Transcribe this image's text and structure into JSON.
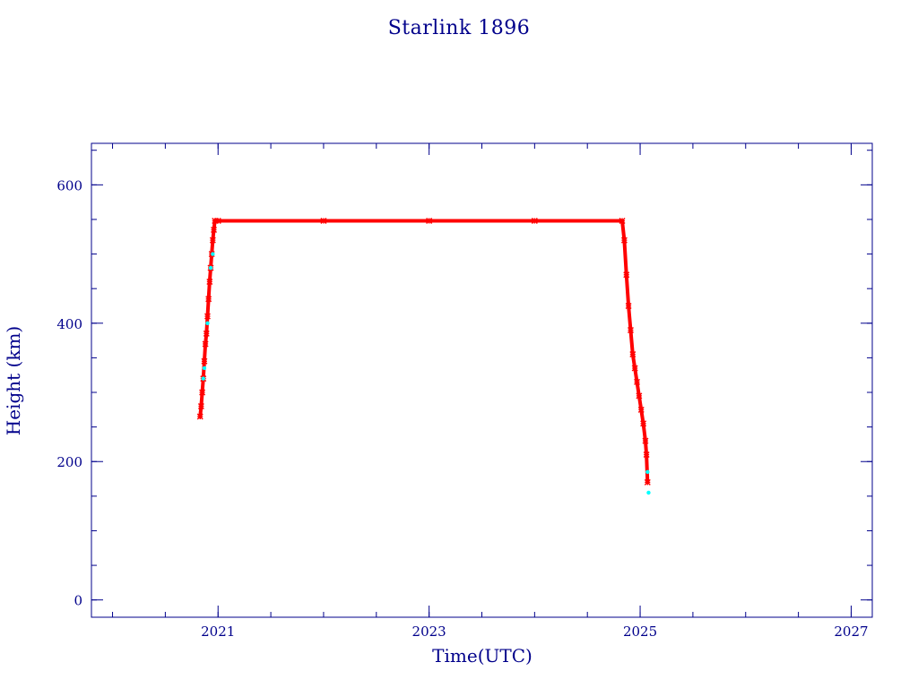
{
  "chart_data": {
    "type": "scatter",
    "title": "Starlink 1896",
    "xlabel": "Time(UTC)",
    "ylabel": "Height (km)",
    "xlim": [
      2019.8,
      2027.2
    ],
    "ylim": [
      -25,
      660
    ],
    "x_ticks": [
      2021,
      2023,
      2025,
      2027
    ],
    "y_ticks": [
      0,
      200,
      400,
      600
    ],
    "x_minor_step": 0.5,
    "y_minor_step": 50,
    "grid": false,
    "colors": {
      "axis": "#00008B",
      "primary_series": "#FF0000",
      "secondary_series": "#00FFFF"
    },
    "series": [
      {
        "color": "#FF0000",
        "marker": "asterisk",
        "x": [
          2020.83,
          2020.84,
          2020.85,
          2020.86,
          2020.87,
          2020.88,
          2020.89,
          2020.9,
          2020.91,
          2020.92,
          2020.93,
          2020.94,
          2020.95,
          2020.96,
          2020.97,
          2021.0,
          2022.0,
          2023.0,
          2024.0,
          2024.83,
          2024.85,
          2024.87,
          2024.89,
          2024.91,
          2024.93,
          2024.95,
          2024.97,
          2024.99,
          2025.01,
          2025.03,
          2025.05,
          2025.06,
          2025.07
        ],
        "y": [
          265,
          280,
          300,
          320,
          345,
          370,
          385,
          410,
          435,
          460,
          480,
          500,
          520,
          535,
          548,
          548,
          548,
          548,
          548,
          548,
          520,
          470,
          425,
          390,
          355,
          335,
          315,
          295,
          275,
          255,
          230,
          210,
          170
        ]
      },
      {
        "color": "#00FFFF",
        "marker": "dot",
        "x": [
          2020.86,
          2020.87,
          2020.9,
          2020.93,
          2020.95,
          2025.07,
          2025.08
        ],
        "y": [
          320,
          335,
          400,
          480,
          500,
          185,
          155
        ]
      }
    ]
  }
}
